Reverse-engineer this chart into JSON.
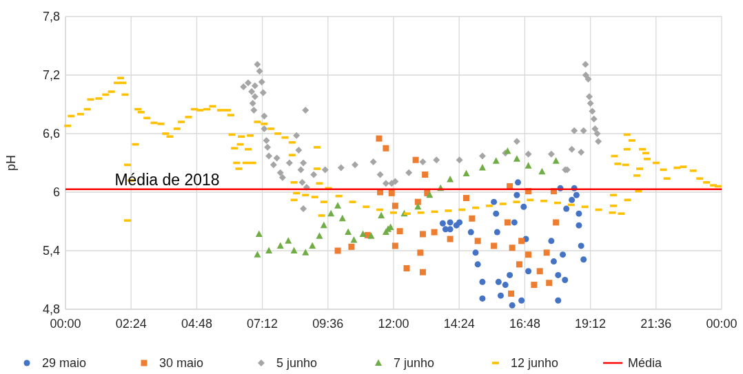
{
  "chart_data": {
    "type": "scatter",
    "ylabel": "pH",
    "xlim": [
      0,
      24
    ],
    "ylim": [
      4.8,
      7.8
    ],
    "xticks": [
      {
        "value": 0,
        "label": "00:00"
      },
      {
        "value": 2.4,
        "label": "02:24"
      },
      {
        "value": 4.8,
        "label": "04:48"
      },
      {
        "value": 7.2,
        "label": "07:12"
      },
      {
        "value": 9.6,
        "label": "09:36"
      },
      {
        "value": 12,
        "label": "12:00"
      },
      {
        "value": 14.4,
        "label": "14:24"
      },
      {
        "value": 16.8,
        "label": "16:48"
      },
      {
        "value": 19.2,
        "label": "19:12"
      },
      {
        "value": 21.6,
        "label": "21:36"
      },
      {
        "value": 24,
        "label": "00:00"
      }
    ],
    "yticks": [
      {
        "value": 4.8,
        "label": "4,8"
      },
      {
        "value": 5.4,
        "label": "5,4"
      },
      6,
      {
        "value": 6.6,
        "label": "6,6"
      },
      {
        "value": 7.2,
        "label": "7,2"
      },
      {
        "value": 7.8,
        "label": "7,8"
      }
    ],
    "grid": true,
    "legend": "bottom",
    "annotations": [
      {
        "text": "Média de 2018",
        "x": 1.8,
        "y": 6.03
      }
    ],
    "series": [
      {
        "name": "29 maio",
        "color": "#4472c4",
        "marker": "circle",
        "x": [
          13.8,
          14.3,
          13.9,
          14.07,
          14.41,
          14.07,
          14.83,
          15.0,
          15.08,
          15.25,
          15.25,
          15.67,
          15.75,
          15.79,
          15.84,
          15.92,
          16.09,
          16.34,
          16.25,
          16.42,
          16.51,
          16.55,
          16.76,
          16.84,
          16.93,
          16.68,
          17.77,
          18.1,
          18.19,
          18.27,
          18.02,
          18.02,
          18.52,
          18.61,
          18.69,
          18.78,
          18.86,
          18.95,
          18.78,
          18.32,
          17.86
        ],
        "values": [
          5.68,
          5.66,
          5.62,
          5.69,
          5.69,
          5.62,
          5.59,
          5.38,
          5.26,
          5.08,
          4.91,
          5.9,
          5.78,
          5.59,
          5.08,
          4.94,
          5.05,
          4.84,
          5.15,
          5.69,
          5.97,
          6.1,
          5.85,
          5.52,
          5.19,
          4.89,
          5.5,
          6.04,
          5.36,
          5.1,
          4.89,
          5.15,
          5.92,
          6.04,
          5.97,
          5.66,
          5.45,
          5.31,
          5.78,
          5.83,
          5.29
        ]
      },
      {
        "name": "30 maio",
        "color": "#ed7d31",
        "marker": "square",
        "x": [
          9.96,
          10.46,
          11.05,
          11.47,
          11.72,
          11.51,
          11.93,
          12.06,
          12.23,
          12.06,
          12.48,
          12.81,
          13.15,
          13.23,
          12.89,
          13.07,
          12.98,
          13.07,
          13.49,
          14.07,
          14.66,
          14.87,
          15.08,
          15.67,
          16.17,
          16.25,
          16.34,
          16.68,
          16.93,
          16.93,
          17.35,
          17.6,
          17.86,
          17.94,
          17.69,
          16.3,
          17.14,
          16.6
        ],
        "values": [
          5.4,
          5.44,
          5.56,
          6.55,
          6.45,
          6.0,
          5.99,
          5.86,
          5.6,
          5.45,
          5.22,
          6.33,
          6.18,
          5.99,
          5.9,
          5.57,
          5.38,
          5.18,
          5.59,
          5.52,
          5.94,
          5.73,
          5.5,
          5.45,
          5.69,
          6.06,
          5.43,
          5.5,
          6.01,
          5.36,
          5.19,
          5.38,
          6.01,
          5.69,
          5.07,
          4.96,
          5.05,
          5.26
        ]
      },
      {
        "name": "5 junho",
        "color": "#a5a5a5",
        "marker": "diamond",
        "x": [
          7.02,
          7.1,
          6.68,
          6.51,
          6.93,
          7.18,
          6.81,
          6.93,
          7.23,
          6.85,
          6.89,
          7.27,
          8.78,
          7.27,
          7.35,
          7.39,
          7.44,
          7.73,
          7.61,
          7.86,
          7.94,
          8.19,
          8.45,
          8.53,
          8.7,
          8.61,
          8.66,
          8.82,
          8.7,
          9.08,
          9.5,
          10.08,
          10.59,
          11.26,
          11.51,
          11.72,
          11.93,
          12.06,
          12.56,
          13.07,
          13.57,
          14.41,
          15.25,
          16.09,
          16.51,
          16.93,
          17.77,
          18.52,
          18.86,
          18.35,
          18.61,
          18.95,
          19.02,
          19.03,
          19.12,
          19.16,
          19.2,
          19.27,
          19.33,
          19.37,
          19.45,
          19.49,
          18.28
        ],
        "values": [
          7.31,
          7.24,
          7.12,
          7.08,
          7.09,
          7.13,
          7.03,
          6.98,
          7.02,
          6.91,
          6.84,
          6.78,
          6.84,
          6.65,
          6.53,
          6.46,
          6.37,
          6.35,
          6.28,
          6.2,
          6.15,
          6.3,
          6.58,
          6.43,
          6.3,
          6.23,
          6.1,
          6.05,
          5.83,
          6.18,
          6.23,
          6.25,
          6.28,
          6.31,
          6.18,
          6.09,
          6.09,
          6.11,
          6.2,
          6.31,
          6.33,
          6.33,
          6.37,
          6.4,
          6.52,
          6.39,
          6.39,
          6.44,
          6.41,
          6.23,
          6.63,
          6.63,
          7.31,
          7.2,
          7.16,
          6.98,
          6.91,
          6.83,
          6.75,
          6.65,
          6.6,
          6.52,
          6.23
        ]
      },
      {
        "name": "7 junho",
        "color": "#70ad47",
        "marker": "triangle",
        "x": [
          7.08,
          7.02,
          7.44,
          7.86,
          8.15,
          8.36,
          8.78,
          9.03,
          9.29,
          9.45,
          9.71,
          9.96,
          10.13,
          10.34,
          10.55,
          10.88,
          11.18,
          11.55,
          11.8,
          11.72,
          11.89,
          12.39,
          12.89,
          13.32,
          13.72,
          14.07,
          14.66,
          15.25,
          15.75,
          16.17,
          16.51,
          16.93,
          17.43,
          17.94
        ],
        "values": [
          5.57,
          5.36,
          5.4,
          5.45,
          5.5,
          5.4,
          5.38,
          5.45,
          5.55,
          5.66,
          5.78,
          5.86,
          5.73,
          5.59,
          5.51,
          5.57,
          5.55,
          5.76,
          5.62,
          5.59,
          5.64,
          5.78,
          5.85,
          5.97,
          6.04,
          6.13,
          6.19,
          6.25,
          6.32,
          6.42,
          6.34,
          6.27,
          6.21,
          6.32
        ]
      },
      {
        "name": "12 junho",
        "color": "#ffc000",
        "x": [
          0.08,
          0.21,
          0.55,
          0.8,
          0.92,
          1.22,
          1.47,
          1.68,
          1.89,
          2.02,
          2.1,
          2.18,
          2.27,
          2.39,
          2.27,
          2.56,
          2.65,
          2.77,
          2.98,
          3.24,
          3.49,
          3.66,
          3.82,
          4.08,
          4.24,
          4.5,
          4.71,
          4.92,
          5.17,
          5.38,
          5.67,
          5.92,
          6.05,
          6.09,
          6.43,
          6.76,
          6.18,
          6.39,
          6.68,
          6.26,
          6.6,
          6.85,
          6.34,
          7.02,
          7.27,
          7.52,
          7.77,
          8.03,
          8.29,
          8.29,
          8.36,
          8.36,
          8.45,
          8.78,
          9.12,
          9.2,
          9.2,
          9.29,
          9.37,
          9.45,
          9.62,
          10.0,
          10.5,
          11.0,
          11.5,
          12.0,
          12.5,
          13.0,
          13.5,
          14.0,
          14.5,
          15.0,
          15.5,
          16.0,
          16.5,
          17.0,
          17.5,
          18.0,
          18.5,
          19.0,
          19.5,
          20.0,
          20.04,
          20.56,
          20.04,
          20.33,
          20.96,
          20.54,
          20.72,
          20.54,
          20.08,
          20.2,
          20.49,
          21.0,
          20.9,
          21.1,
          21.23,
          21.28,
          21.6,
          21.87,
          22.0,
          22.37,
          22.6,
          22.96,
          23.2,
          23.45,
          23.7,
          23.87
        ],
        "values": [
          6.68,
          6.78,
          6.8,
          6.85,
          6.95,
          6.96,
          7.0,
          7.03,
          7.12,
          7.17,
          7.12,
          7.0,
          6.28,
          6.12,
          5.71,
          6.49,
          6.85,
          6.82,
          6.76,
          6.71,
          6.7,
          6.6,
          6.57,
          6.65,
          6.72,
          6.77,
          6.85,
          6.84,
          6.85,
          6.88,
          6.84,
          6.84,
          6.79,
          6.59,
          6.57,
          6.58,
          6.45,
          6.49,
          6.44,
          6.3,
          6.3,
          6.3,
          6.24,
          6.72,
          6.7,
          6.65,
          6.6,
          6.56,
          6.51,
          6.38,
          6.1,
          5.92,
          5.99,
          5.97,
          5.95,
          6.46,
          6.24,
          6.09,
          5.76,
          5.9,
          6.04,
          5.96,
          5.9,
          5.85,
          5.82,
          5.79,
          5.78,
          5.79,
          5.8,
          5.81,
          5.82,
          5.84,
          5.86,
          5.88,
          5.9,
          5.92,
          5.91,
          5.89,
          5.87,
          5.85,
          5.82,
          5.79,
          5.97,
          5.92,
          5.86,
          5.78,
          6.01,
          6.59,
          6.53,
          6.44,
          6.37,
          6.29,
          6.28,
          6.24,
          6.17,
          6.44,
          6.4,
          6.34,
          6.3,
          6.23,
          6.14,
          6.25,
          6.26,
          6.22,
          6.14,
          6.1,
          6.07,
          6.06
        ]
      },
      {
        "name": "Média",
        "type": "line",
        "color": "#ff0000",
        "marker": "none",
        "x": [
          0,
          24
        ],
        "values": [
          6.03,
          6.03
        ]
      }
    ]
  }
}
